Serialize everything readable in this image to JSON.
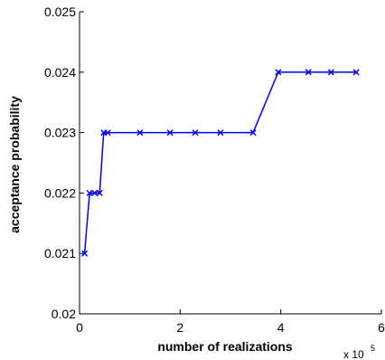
{
  "chart_data": {
    "type": "line",
    "xlabel": "number of realizations",
    "ylabel": "acceptance probability",
    "x_multiplier_label": "x 10",
    "x_multiplier_exponent": "5",
    "xlim": [
      0,
      6
    ],
    "ylim": [
      0.02,
      0.025
    ],
    "x_ticks": [
      0,
      2,
      4,
      6
    ],
    "x_tick_labels": [
      "0",
      "2",
      "4",
      "6"
    ],
    "y_ticks": [
      0.02,
      0.021,
      0.022,
      0.023,
      0.024,
      0.025
    ],
    "y_tick_labels": [
      "0.02",
      "0.021",
      "0.022",
      "0.023",
      "0.024",
      "0.025"
    ],
    "grid": false,
    "series": [
      {
        "color": "#0000ff",
        "marker": "x",
        "x": [
          0.1,
          0.2,
          0.3,
          0.4,
          0.48,
          0.56,
          1.2,
          1.8,
          2.3,
          2.8,
          3.45,
          3.95,
          4.55,
          5.0,
          5.5
        ],
        "y": [
          0.021,
          0.022,
          0.022,
          0.022,
          0.023,
          0.023,
          0.023,
          0.023,
          0.023,
          0.023,
          0.023,
          0.024,
          0.024,
          0.024,
          0.024
        ]
      }
    ]
  }
}
